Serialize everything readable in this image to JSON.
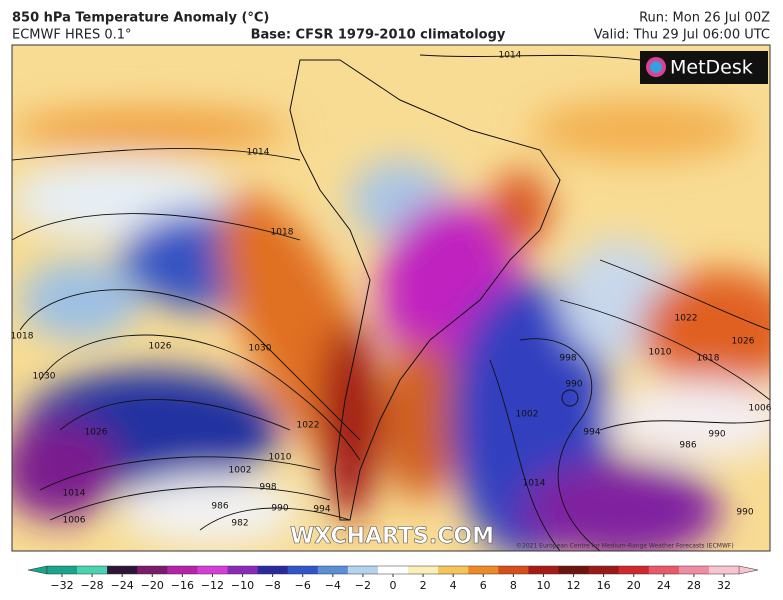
{
  "header": {
    "title": "850 hPa Temperature Anomaly (°C)",
    "model": "ECMWF HRES 0.1°",
    "base": "Base: CFSR 1979-2010 climatology",
    "run": "Run: Mon 26 Jul 00Z",
    "valid": "Valid: Thu 29 Jul 06:00 UTC"
  },
  "logo": "MetDesk",
  "watermark": "WXCHARTS.COM",
  "copyright": "©2021 European Centre for Medium-Range Weather Forecasts (ECMWF)",
  "isobar_labels": [
    "1014",
    "1014",
    "1018",
    "1018",
    "1026",
    "1030",
    "1030",
    "1026",
    "1022",
    "1010",
    "1002",
    "998",
    "990",
    "994",
    "986",
    "982",
    "1014",
    "1006",
    "1022",
    "1010",
    "1018",
    "1026",
    "998",
    "990",
    "1002",
    "994",
    "986",
    "990",
    "1006",
    "1014",
    "990"
  ],
  "colorbar": {
    "ticks": [
      {
        "value": -32,
        "label": "−32",
        "color": "#17a58c"
      },
      {
        "value": -28,
        "label": "−28",
        "color": "#49d3b0"
      },
      {
        "value": -24,
        "label": "−24",
        "color": "#2e1436"
      },
      {
        "value": -20,
        "label": "−20",
        "color": "#7a1b6e"
      },
      {
        "value": -16,
        "label": "−16",
        "color": "#b324a8"
      },
      {
        "value": -12,
        "label": "−12",
        "color": "#d33fd6"
      },
      {
        "value": -10,
        "label": "−10",
        "color": "#8a2ab8"
      },
      {
        "value": -8,
        "label": "−8",
        "color": "#2a2a9e"
      },
      {
        "value": -6,
        "label": "−6",
        "color": "#2f55c8"
      },
      {
        "value": -4,
        "label": "−4",
        "color": "#5a8fd8"
      },
      {
        "value": -2,
        "label": "−2",
        "color": "#b4d2ee"
      },
      {
        "value": 0,
        "label": "0",
        "color": "#ffffff"
      },
      {
        "value": 2,
        "label": "2",
        "color": "#fbefb8"
      },
      {
        "value": 4,
        "label": "4",
        "color": "#f5c45a"
      },
      {
        "value": 6,
        "label": "6",
        "color": "#ee8a26"
      },
      {
        "value": 8,
        "label": "8",
        "color": "#d64e1a"
      },
      {
        "value": 10,
        "label": "10",
        "color": "#a61c14"
      },
      {
        "value": 12,
        "label": "12",
        "color": "#6e1410"
      },
      {
        "value": 16,
        "label": "16",
        "color": "#9a1a1a"
      },
      {
        "value": 20,
        "label": "20",
        "color": "#d0282e"
      },
      {
        "value": 24,
        "label": "24",
        "color": "#e85a6a"
      },
      {
        "value": 28,
        "label": "28",
        "color": "#f08ca0"
      },
      {
        "value": 32,
        "label": "32",
        "color": "#f7c4d0"
      }
    ]
  }
}
